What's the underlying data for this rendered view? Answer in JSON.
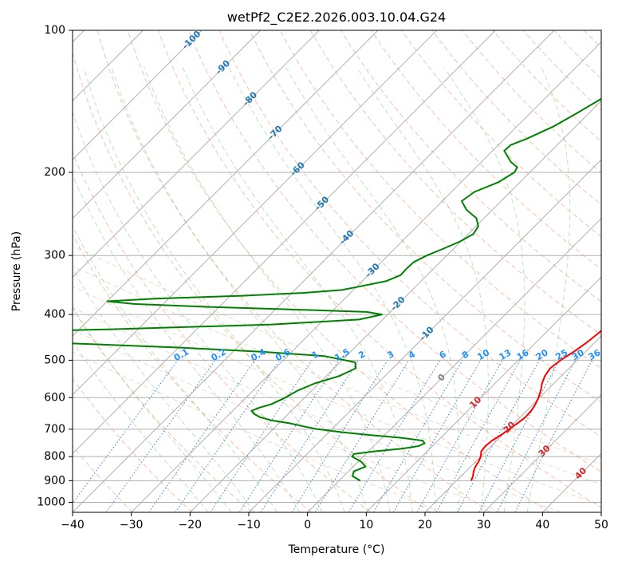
{
  "chart_data": {
    "type": "line",
    "title": "wetPf2_C2E2.2026.003.10.04.G24",
    "xlabel": "Temperature (°C)",
    "ylabel": "Pressure (hPa)",
    "xlim": [
      -40,
      50
    ],
    "ylim": [
      1050,
      100
    ],
    "y_scale": "log",
    "skew": "skew-T",
    "grid": true,
    "x_ticks": [
      -40,
      -30,
      -20,
      -10,
      0,
      10,
      20,
      30,
      40,
      50
    ],
    "y_ticks": [
      100,
      200,
      300,
      400,
      500,
      600,
      700,
      800,
      900,
      1000
    ],
    "series": [
      {
        "color": "#ff0000",
        "points": [
          [
            900,
            22.5
          ],
          [
            880,
            22.0
          ],
          [
            860,
            21.3
          ],
          [
            840,
            20.8
          ],
          [
            820,
            20.5
          ],
          [
            800,
            20.0
          ],
          [
            780,
            19.2
          ],
          [
            760,
            19.0
          ],
          [
            740,
            19.2
          ],
          [
            720,
            19.8
          ],
          [
            700,
            20.2
          ],
          [
            680,
            20.6
          ],
          [
            660,
            20.9
          ],
          [
            640,
            20.8
          ],
          [
            620,
            20.4
          ],
          [
            600,
            19.8
          ],
          [
            580,
            19.0
          ],
          [
            560,
            18.0
          ],
          [
            540,
            17.2
          ],
          [
            520,
            16.8
          ],
          [
            500,
            17.2
          ],
          [
            480,
            18.0
          ],
          [
            460,
            18.6
          ],
          [
            440,
            19.0
          ],
          [
            420,
            19.3
          ],
          [
            400,
            18.9
          ],
          [
            380,
            18.0
          ],
          [
            360,
            16.4
          ],
          [
            340,
            14.4
          ],
          [
            320,
            12.6
          ],
          [
            300,
            10.9
          ],
          [
            280,
            9.6
          ],
          [
            260,
            8.9
          ],
          [
            240,
            7.3
          ],
          [
            220,
            5.5
          ],
          [
            210,
            4.3
          ],
          [
            200,
            3.5
          ],
          [
            190,
            3.0
          ],
          [
            180,
            2.0
          ],
          [
            170,
            0.6
          ],
          [
            160,
            -0.8
          ],
          [
            150,
            -2.5
          ],
          [
            140,
            -4.4
          ],
          [
            130,
            -6.2
          ],
          [
            120,
            -7.6
          ],
          [
            115,
            -7.8
          ],
          [
            110,
            -7.0
          ],
          [
            105,
            -5.9
          ],
          [
            100,
            -5.0
          ]
        ]
      },
      {
        "color": "#008000",
        "points": [
          [
            900,
            3.6
          ],
          [
            880,
            1.5
          ],
          [
            860,
            0.9
          ],
          [
            840,
            2.1
          ],
          [
            820,
            0.5
          ],
          [
            800,
            -1.9
          ],
          [
            790,
            -2.0
          ],
          [
            780,
            1.0
          ],
          [
            770,
            5.2
          ],
          [
            760,
            7.6
          ],
          [
            750,
            8.2
          ],
          [
            740,
            7.4
          ],
          [
            730,
            3.3
          ],
          [
            720,
            -2.6
          ],
          [
            710,
            -7.9
          ],
          [
            700,
            -12.4
          ],
          [
            690,
            -15.4
          ],
          [
            680,
            -18.2
          ],
          [
            670,
            -21.9
          ],
          [
            660,
            -24.3
          ],
          [
            650,
            -25.8
          ],
          [
            640,
            -26.8
          ],
          [
            630,
            -26.0
          ],
          [
            620,
            -24.6
          ],
          [
            600,
            -23.3
          ],
          [
            580,
            -22.4
          ],
          [
            560,
            -20.7
          ],
          [
            540,
            -17.8
          ],
          [
            520,
            -16.3
          ],
          [
            505,
            -17.4
          ],
          [
            490,
            -23.7
          ],
          [
            480,
            -34.9
          ],
          [
            470,
            -50
          ],
          [
            460,
            -70
          ],
          [
            450,
            -95
          ],
          [
            440,
            -97
          ],
          [
            430,
            -65
          ],
          [
            420,
            -38
          ],
          [
            410,
            -24
          ],
          [
            400,
            -21
          ],
          [
            395,
            -24
          ],
          [
            390,
            -38
          ],
          [
            385,
            -53
          ],
          [
            380,
            -65
          ],
          [
            375,
            -70
          ],
          [
            370,
            -62
          ],
          [
            365,
            -48
          ],
          [
            360,
            -38
          ],
          [
            355,
            -32
          ],
          [
            350,
            -30
          ],
          [
            340,
            -26
          ],
          [
            330,
            -24.5
          ],
          [
            320,
            -24.6
          ],
          [
            310,
            -24.5
          ],
          [
            300,
            -23.4
          ],
          [
            290,
            -21.7
          ],
          [
            280,
            -20.1
          ],
          [
            270,
            -19.1
          ],
          [
            260,
            -19.6
          ],
          [
            250,
            -21.3
          ],
          [
            240,
            -24.4
          ],
          [
            230,
            -26.7
          ],
          [
            220,
            -26.1
          ],
          [
            210,
            -23.7
          ],
          [
            200,
            -22.6
          ],
          [
            195,
            -23.0
          ],
          [
            190,
            -25.0
          ],
          [
            180,
            -28.0
          ],
          [
            175,
            -27.9
          ],
          [
            170,
            -26.3
          ],
          [
            160,
            -23.8
          ],
          [
            150,
            -22.1
          ],
          [
            140,
            -20.4
          ],
          [
            130,
            -18.7
          ],
          [
            120,
            -17.1
          ],
          [
            110,
            -15.2
          ],
          [
            105,
            -14.3
          ],
          [
            100,
            -13.5
          ]
        ]
      }
    ],
    "annotations": {
      "isotherm_labels": [
        "-100",
        "-90",
        "-80",
        "-70",
        "-60",
        "-50",
        "-40",
        "-30",
        "-20",
        "-10"
      ],
      "isotherm_label_color": "#1f77b4",
      "mixing_ratio_labels": [
        "0.1",
        "0.2",
        "0.4",
        "0.6",
        "1",
        "1.5",
        "2",
        "3",
        "4",
        "6",
        "8",
        "10",
        "13",
        "16",
        "20",
        "25",
        "30",
        "36"
      ],
      "mixing_ratio_label_color": "#1e90ff",
      "warm_labels": [
        "0",
        "10",
        "20",
        "30",
        "40"
      ],
      "warm_label_color_zero": "#808080",
      "warm_label_color": "#d62728"
    },
    "background_line_colors": {
      "grid": "#b0b0b0",
      "dry_adiabat": "#ff7f50",
      "moist_adiabat": "#2ca02c",
      "mixing_ratio": "#1e78d2",
      "isentrope": "#d2b48c"
    }
  }
}
